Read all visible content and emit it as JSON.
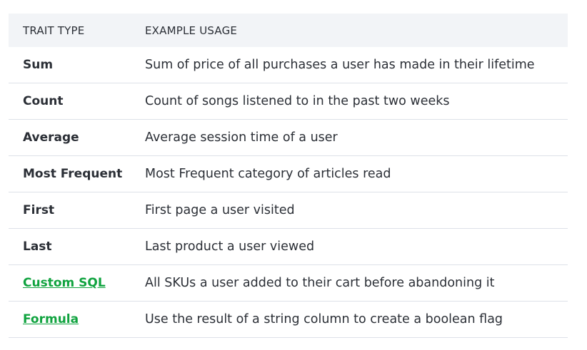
{
  "table": {
    "headers": [
      "TRAIT TYPE",
      "EXAMPLE USAGE"
    ],
    "link_color": "#10a33f",
    "rows": [
      {
        "type": "Sum",
        "usage": "Sum of price of all purchases a user has made in their lifetime",
        "link": false
      },
      {
        "type": "Count",
        "usage": "Count of songs listened to in the past two weeks",
        "link": false
      },
      {
        "type": "Average",
        "usage": "Average session time of a user",
        "link": false
      },
      {
        "type": "Most Frequent",
        "usage": "Most Frequent category of articles read",
        "link": false
      },
      {
        "type": "First",
        "usage": "First page a user visited",
        "link": false
      },
      {
        "type": "Last",
        "usage": "Last product a user viewed",
        "link": false
      },
      {
        "type": "Custom SQL",
        "usage": "All SKUs a user added to their cart before abandoning it",
        "link": true
      },
      {
        "type": "Formula",
        "usage": "Use the result of a string column to create a boolean flag",
        "link": true
      }
    ]
  }
}
